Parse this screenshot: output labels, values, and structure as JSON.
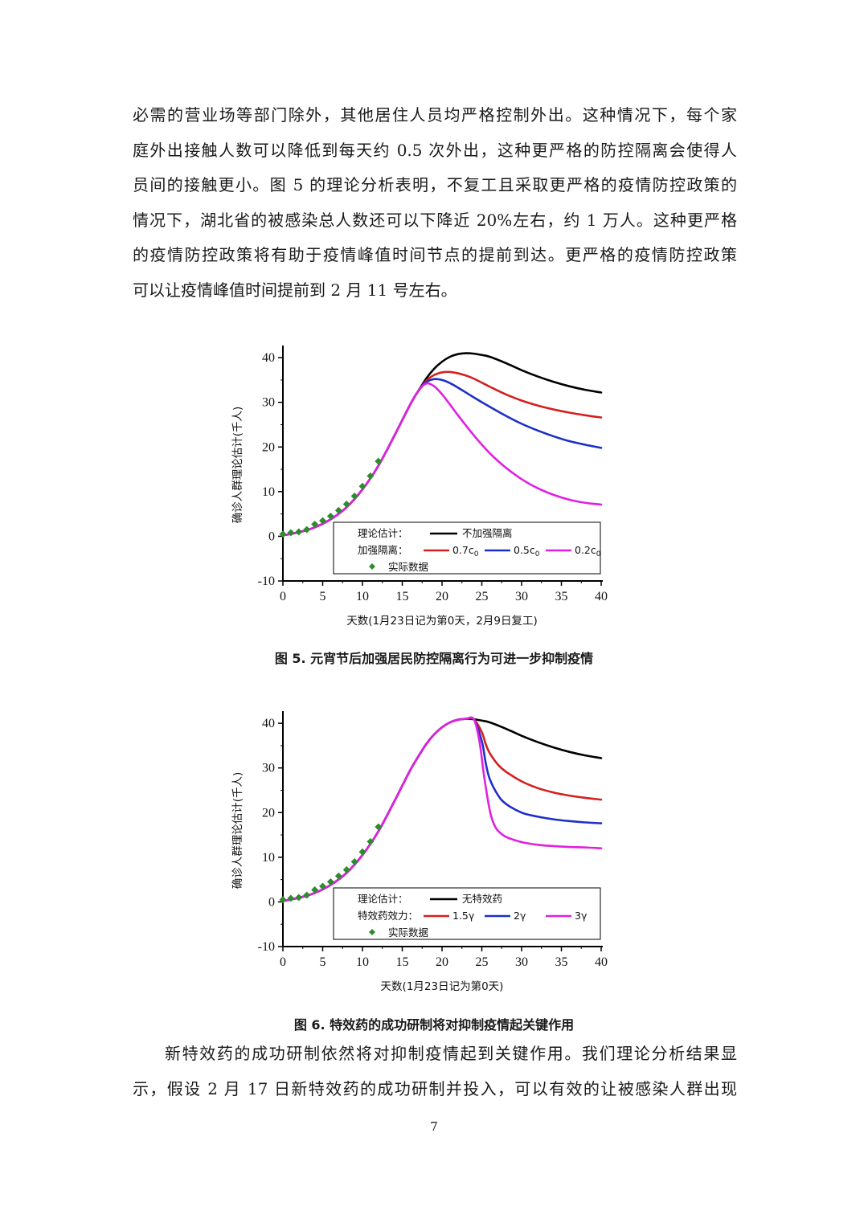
{
  "paragraph1": [
    "必需的营业场等部门除外，其他居住人员均严格控制外出。这种情况下，每个家",
    "庭外出接触人数可以降低到每天约 0.5 次外出，这种更严格的防控隔离会使得人",
    "员间的接触更小。图 5 的理论分析表明，不复工且采取更严格的疫情防控政策的",
    "情况下，湖北省的被感染总人数还可以下降近 20%左右，约 1 万人。这种更严格",
    "的疫情防控政策将有助于疫情峰值时间节点的提前到达。更严格的疫情防控政策",
    "可以让疫情峰值时间提前到 2 月 11 号左右。"
  ],
  "figure5": {
    "caption": "图 5.  元宵节后加强居民防控隔离行为可进一步抑制疫情",
    "chart_data": {
      "type": "line",
      "xlabel": "天数(1月23日记为第0天，2月9日复工)",
      "ylabel": "确诊人群理论估计(千人)",
      "xlim": [
        0,
        40
      ],
      "ylim": [
        -10,
        42
      ],
      "xticks": [
        0,
        5,
        10,
        15,
        20,
        25,
        30,
        35,
        40
      ],
      "yticks": [
        -10,
        0,
        10,
        20,
        30,
        40
      ],
      "legend": {
        "row1_label": "理论估计：",
        "row2_label": "加强隔离：",
        "placement": "bottom-right"
      },
      "series": [
        {
          "name": "不加强隔离",
          "legend_row": 1,
          "color": "#000000",
          "x": [
            0,
            2,
            4,
            6,
            8,
            10,
            12,
            14,
            16,
            17,
            18,
            19,
            20,
            21,
            22,
            23,
            24,
            25,
            26,
            28,
            30,
            32,
            34,
            36,
            38,
            40
          ],
          "y": [
            0.2,
            0.9,
            2.0,
            3.8,
            6.5,
            10.5,
            15.8,
            22.5,
            29.5,
            32.5,
            35.3,
            37.5,
            39.1,
            40.2,
            40.8,
            41.0,
            40.9,
            40.6,
            40.2,
            38.8,
            37.2,
            35.8,
            34.6,
            33.6,
            32.8,
            32.2
          ]
        },
        {
          "name": "0.7c0",
          "legend_row": 2,
          "color": "#d42020",
          "x": [
            0,
            2,
            4,
            6,
            8,
            10,
            12,
            14,
            16,
            17,
            18,
            19,
            20,
            21,
            22,
            23,
            24,
            26,
            28,
            30,
            32,
            34,
            36,
            38,
            40
          ],
          "y": [
            0.2,
            0.9,
            2.0,
            3.8,
            6.5,
            10.5,
            15.8,
            22.5,
            29.5,
            32.5,
            34.8,
            36.1,
            36.7,
            36.8,
            36.5,
            36.0,
            35.3,
            33.5,
            31.8,
            30.4,
            29.3,
            28.4,
            27.7,
            27.1,
            26.6
          ]
        },
        {
          "name": "0.5c0",
          "legend_row": 2,
          "color": "#1d2fc8",
          "x": [
            0,
            2,
            4,
            6,
            8,
            10,
            12,
            14,
            16,
            17,
            18,
            19,
            20,
            21,
            22,
            24,
            26,
            28,
            30,
            32,
            34,
            36,
            38,
            40
          ],
          "y": [
            0.2,
            0.9,
            2.0,
            3.8,
            6.5,
            10.5,
            15.8,
            22.5,
            29.5,
            32.5,
            34.5,
            35.2,
            35.0,
            34.3,
            33.3,
            31.1,
            29.0,
            27.0,
            25.2,
            23.7,
            22.4,
            21.3,
            20.5,
            19.8
          ]
        },
        {
          "name": "0.2c0",
          "legend_row": 2,
          "color": "#e020e0",
          "x": [
            0,
            2,
            4,
            6,
            8,
            10,
            12,
            14,
            16,
            17,
            18,
            19,
            20,
            21,
            22,
            24,
            26,
            28,
            30,
            32,
            34,
            36,
            38,
            40
          ],
          "y": [
            0.2,
            0.9,
            2.0,
            3.8,
            6.5,
            10.5,
            15.8,
            22.5,
            29.5,
            32.5,
            34.2,
            33.6,
            31.8,
            29.5,
            27.1,
            22.6,
            18.6,
            15.4,
            12.8,
            10.8,
            9.3,
            8.2,
            7.5,
            7.1
          ]
        }
      ],
      "points": {
        "name": "实际数据",
        "color": "#2e8b2e",
        "x": [
          0,
          1,
          2,
          3,
          4,
          5,
          6,
          7,
          8,
          9,
          10,
          11,
          12
        ],
        "y": [
          0.5,
          0.8,
          1.0,
          1.5,
          2.7,
          3.5,
          4.5,
          5.8,
          7.2,
          9.0,
          11.2,
          13.5,
          16.8
        ]
      }
    }
  },
  "figure6": {
    "caption": "图 6.  特效药的成功研制将对抑制疫情起关键作用",
    "chart_data": {
      "type": "line",
      "xlabel": "天数(1月23日记为第0天)",
      "ylabel": "确诊人群理论估计(千人)",
      "xlim": [
        0,
        40
      ],
      "ylim": [
        -10,
        42
      ],
      "xticks": [
        0,
        5,
        10,
        15,
        20,
        25,
        30,
        35,
        40
      ],
      "yticks": [
        -10,
        0,
        10,
        20,
        30,
        40
      ],
      "legend": {
        "row1_label": "理论估计：",
        "row2_label": "特效药效力：",
        "placement": "bottom-right"
      },
      "series": [
        {
          "name": "无特效药",
          "legend_row": 1,
          "color": "#000000",
          "x": [
            0,
            2,
            4,
            6,
            8,
            10,
            12,
            14,
            16,
            17,
            18,
            19,
            20,
            21,
            22,
            23,
            24,
            25,
            26,
            28,
            30,
            32,
            34,
            36,
            38,
            40
          ],
          "y": [
            0.2,
            0.9,
            2.0,
            3.8,
            6.5,
            10.5,
            15.8,
            22.5,
            29.5,
            32.5,
            35.3,
            37.5,
            39.1,
            40.2,
            40.8,
            41.0,
            40.9,
            40.6,
            40.2,
            38.8,
            37.2,
            35.8,
            34.6,
            33.6,
            32.8,
            32.2
          ]
        },
        {
          "name": "1.5γ",
          "legend_row": 2,
          "color": "#d42020",
          "x": [
            0,
            2,
            4,
            6,
            8,
            10,
            12,
            14,
            16,
            17,
            18,
            19,
            20,
            21,
            22,
            23,
            24,
            25,
            25.5,
            26,
            27,
            28,
            30,
            32,
            34,
            36,
            38,
            40
          ],
          "y": [
            0.2,
            0.9,
            2.0,
            3.8,
            6.5,
            10.5,
            15.8,
            22.5,
            29.5,
            32.5,
            35.3,
            37.5,
            39.1,
            40.2,
            40.8,
            41.0,
            40.9,
            38.0,
            35.3,
            33.3,
            30.8,
            29.2,
            27.0,
            25.5,
            24.5,
            23.8,
            23.3,
            22.9
          ]
        },
        {
          "name": "2γ",
          "legend_row": 2,
          "color": "#1d2fc8",
          "x": [
            0,
            2,
            4,
            6,
            8,
            10,
            12,
            14,
            16,
            17,
            18,
            19,
            20,
            21,
            22,
            23,
            24,
            25,
            25.5,
            26,
            27,
            28,
            30,
            32,
            34,
            36,
            38,
            40
          ],
          "y": [
            0.2,
            0.9,
            2.0,
            3.8,
            6.5,
            10.5,
            15.8,
            22.5,
            29.5,
            32.5,
            35.3,
            37.5,
            39.1,
            40.2,
            40.8,
            41.0,
            40.9,
            36.0,
            31.0,
            27.5,
            24.0,
            22.0,
            20.0,
            19.1,
            18.5,
            18.1,
            17.8,
            17.6
          ]
        },
        {
          "name": "3γ",
          "legend_row": 2,
          "color": "#e020e0",
          "x": [
            0,
            2,
            4,
            6,
            8,
            10,
            12,
            14,
            16,
            17,
            18,
            19,
            20,
            21,
            22,
            23,
            24,
            24.7,
            25.3,
            26,
            26.5,
            27,
            28,
            30,
            32,
            34,
            36,
            38,
            40
          ],
          "y": [
            0.2,
            0.9,
            2.0,
            3.8,
            6.5,
            10.5,
            15.8,
            22.5,
            29.5,
            32.5,
            35.3,
            37.5,
            39.1,
            40.2,
            40.8,
            41.0,
            40.9,
            36.0,
            28.0,
            20.5,
            17.5,
            16.0,
            14.6,
            13.4,
            12.8,
            12.5,
            12.3,
            12.2,
            12.0
          ]
        }
      ],
      "points": {
        "name": "实际数据",
        "color": "#2e8b2e",
        "x": [
          0,
          1,
          2,
          3,
          4,
          5,
          6,
          7,
          8,
          9,
          10,
          11,
          12
        ],
        "y": [
          0.5,
          0.8,
          1.0,
          1.5,
          2.7,
          3.5,
          4.5,
          5.8,
          7.2,
          9.0,
          11.2,
          13.5,
          16.8
        ]
      }
    }
  },
  "paragraph2": [
    "新特效药的成功研制依然将对抑制疫情起到关键作用。我们理论分析结果显",
    "示，假设 2 月 17 日新特效药的成功研制并投入，可以有效的让被感染人群出现"
  ],
  "page_number": "7"
}
